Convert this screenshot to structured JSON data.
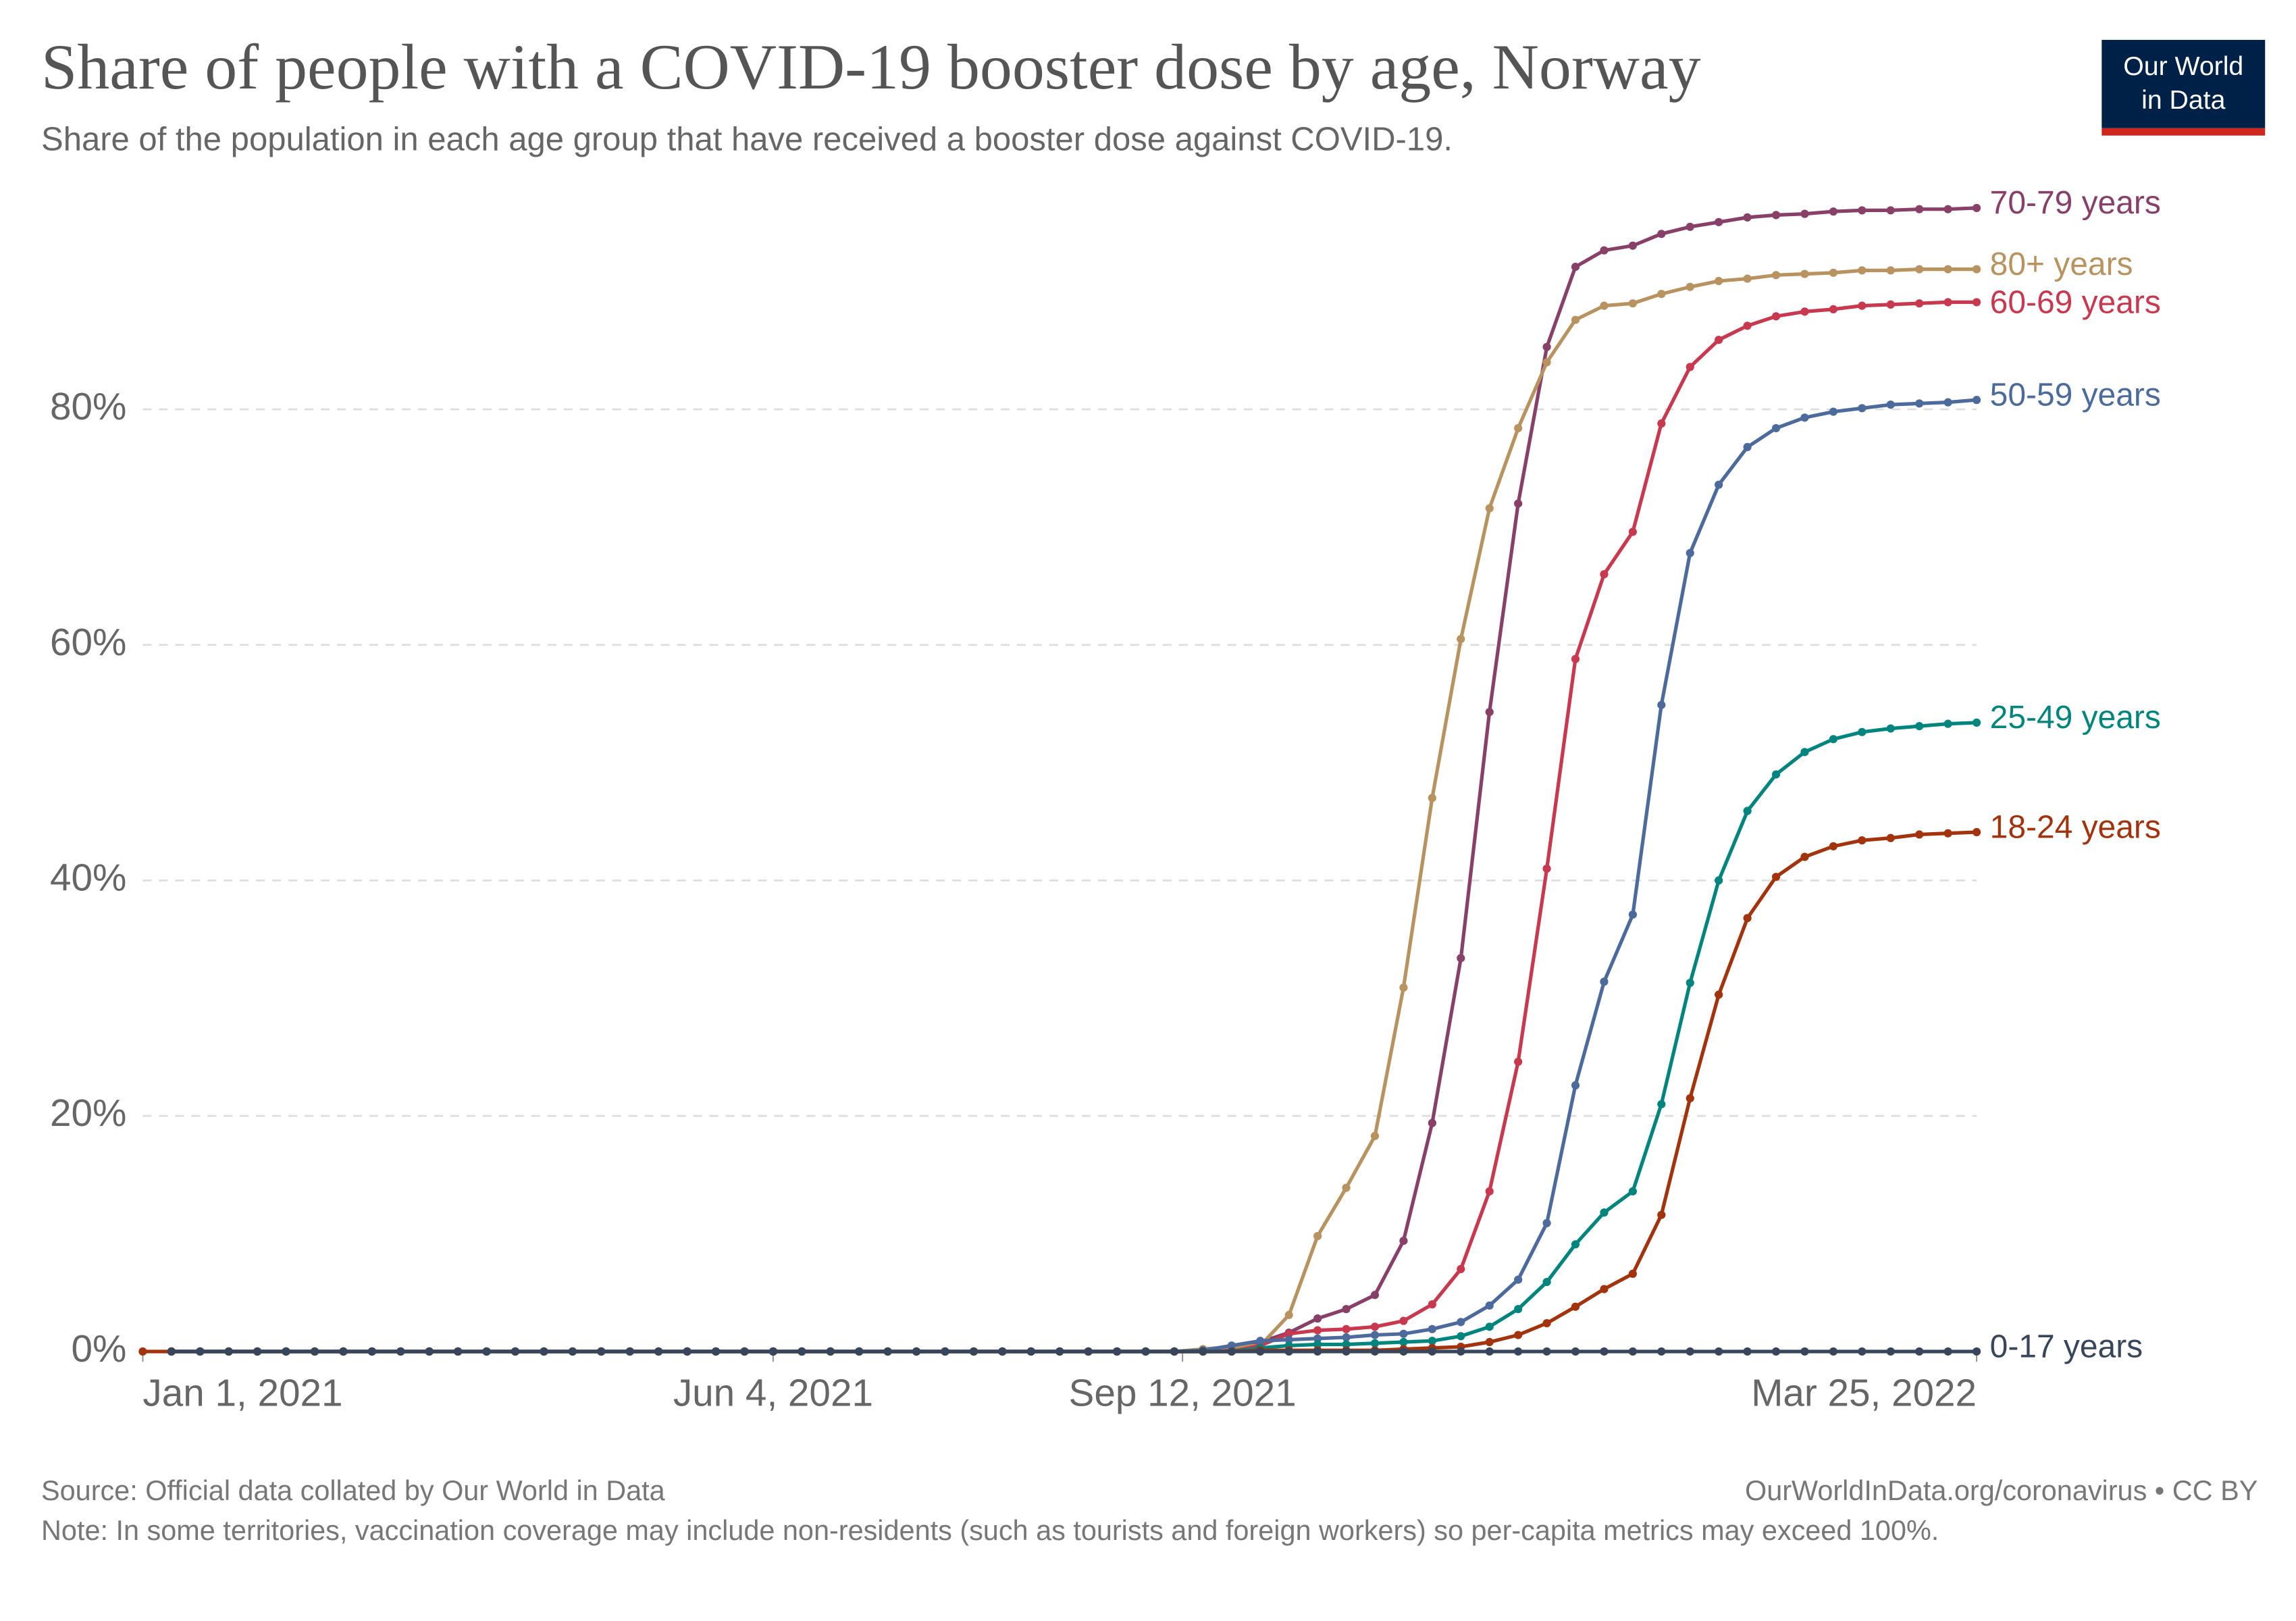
{
  "chart_data": {
    "type": "line",
    "title": "Share of people with a COVID-19 booster dose by age, Norway",
    "subtitle": "Share of the population in each age group that have received a booster dose against COVID-19.",
    "logo": [
      "Our World",
      "in Data"
    ],
    "source": "Source: Official data collated by Our World in Data",
    "license": "OurWorldInData.org/coronavirus • CC BY",
    "note": "Note: In some territories, vaccination coverage may include non-residents (such as tourists and foreign workers) so per-capita metrics may exceed 100%.",
    "x": [
      "2021-01-01",
      "2021-01-08",
      "2021-01-15",
      "2021-01-22",
      "2021-01-29",
      "2021-02-05",
      "2021-02-12",
      "2021-02-19",
      "2021-02-26",
      "2021-03-05",
      "2021-03-12",
      "2021-03-19",
      "2021-03-26",
      "2021-04-02",
      "2021-04-09",
      "2021-04-16",
      "2021-04-23",
      "2021-04-30",
      "2021-05-07",
      "2021-05-14",
      "2021-05-21",
      "2021-05-28",
      "2021-06-04",
      "2021-06-11",
      "2021-06-18",
      "2021-06-25",
      "2021-07-02",
      "2021-07-09",
      "2021-07-16",
      "2021-07-23",
      "2021-07-30",
      "2021-08-06",
      "2021-08-13",
      "2021-08-20",
      "2021-08-27",
      "2021-09-03",
      "2021-09-10",
      "2021-09-17",
      "2021-09-24",
      "2021-10-01",
      "2021-10-08",
      "2021-10-15",
      "2021-10-22",
      "2021-10-29",
      "2021-11-05",
      "2021-11-12",
      "2021-11-19",
      "2021-11-26",
      "2021-12-03",
      "2021-12-10",
      "2021-12-17",
      "2021-12-24",
      "2021-12-31",
      "2022-01-07",
      "2022-01-14",
      "2022-01-21",
      "2022-01-28",
      "2022-02-04",
      "2022-02-11",
      "2022-02-18",
      "2022-02-25",
      "2022-03-04",
      "2022-03-11",
      "2022-03-18",
      "2022-03-25"
    ],
    "xlim": [
      "2021-01-01",
      "2022-03-25"
    ],
    "xticks": [
      {
        "value": "2021-01-01",
        "label": "Jan 1, 2021"
      },
      {
        "value": "2021-06-04",
        "label": "Jun 4, 2021"
      },
      {
        "value": "2021-09-12",
        "label": "Sep 12, 2021"
      },
      {
        "value": "2022-03-25",
        "label": "Mar 25, 2022"
      }
    ],
    "ylim": [
      0,
      100
    ],
    "yticks": [
      {
        "value": 0,
        "label": "0%"
      },
      {
        "value": 20,
        "label": "20%"
      },
      {
        "value": 40,
        "label": "40%"
      },
      {
        "value": 60,
        "label": "60%"
      },
      {
        "value": 80,
        "label": "80%"
      }
    ],
    "grid": true,
    "series": [
      {
        "name": "70-79 years",
        "color": "#883f68",
        "values": [
          null,
          0,
          0,
          0,
          0,
          0,
          0,
          0,
          0,
          0,
          0,
          0,
          0,
          0,
          0,
          0,
          0,
          0,
          0,
          0,
          0,
          0,
          0,
          0,
          0,
          0,
          0,
          0,
          0,
          0,
          0,
          0,
          0,
          0,
          0,
          0,
          0,
          0,
          0.3,
          0.8,
          1.6,
          2.8,
          3.6,
          4.8,
          9.4,
          19.4,
          33.4,
          54.3,
          72,
          85.3,
          92.1,
          93.5,
          93.9,
          94.9,
          95.5,
          95.9,
          96.3,
          96.5,
          96.6,
          96.8,
          96.9,
          96.9,
          97,
          97,
          97.1
        ]
      },
      {
        "name": "80+ years",
        "color": "#b8935f",
        "values": [
          null,
          0,
          0,
          0,
          0,
          0,
          0,
          0,
          0,
          0,
          0,
          0,
          0,
          0,
          0,
          0,
          0,
          0,
          0,
          0,
          0,
          0,
          0,
          0,
          0,
          0,
          0,
          0,
          0,
          0,
          0,
          0,
          0,
          0,
          0,
          0,
          0,
          0.2,
          0.4,
          0.5,
          3.1,
          9.8,
          13.9,
          18.3,
          30.9,
          47,
          60.5,
          71.6,
          78.4,
          84,
          87.6,
          88.8,
          89,
          89.8,
          90.4,
          90.9,
          91.1,
          91.4,
          91.5,
          91.6,
          91.8,
          91.8,
          91.9,
          91.9,
          91.9
        ]
      },
      {
        "name": "60-69 years",
        "color": "#c8384f",
        "values": [
          null,
          0,
          0,
          0,
          0,
          0,
          0,
          0,
          0,
          0,
          0,
          0,
          0,
          0,
          0,
          0,
          0,
          0,
          0,
          0,
          0,
          0,
          0,
          0,
          0,
          0,
          0,
          0,
          0,
          0,
          0,
          0,
          0,
          0,
          0,
          0,
          0,
          0,
          0,
          0.5,
          1.5,
          1.8,
          1.9,
          2.1,
          2.6,
          4,
          7,
          13.6,
          24.6,
          41,
          58.8,
          66,
          69.6,
          78.8,
          83.6,
          85.9,
          87.1,
          87.9,
          88.3,
          88.5,
          88.8,
          88.9,
          89,
          89.1,
          89.1
        ]
      },
      {
        "name": "50-59 years",
        "color": "#4c6a9c",
        "values": [
          null,
          0,
          0,
          0,
          0,
          0,
          0,
          0,
          0,
          0,
          0,
          0,
          0,
          0,
          0,
          0,
          0,
          0,
          0,
          0,
          0,
          0,
          0,
          0,
          0,
          0,
          0,
          0,
          0,
          0,
          0,
          0,
          0,
          0,
          0,
          0,
          0,
          0.1,
          0.5,
          0.9,
          1,
          1.1,
          1.2,
          1.4,
          1.5,
          1.9,
          2.5,
          3.9,
          6.1,
          10.9,
          22.6,
          31.4,
          37.1,
          54.9,
          67.8,
          73.6,
          76.8,
          78.4,
          79.3,
          79.8,
          80.1,
          80.4,
          80.5,
          80.6,
          80.8
        ]
      },
      {
        "name": "25-49 years",
        "color": "#00847e",
        "values": [
          null,
          0,
          0,
          0,
          0,
          0,
          0,
          0,
          0,
          0,
          0,
          0,
          0,
          0,
          0,
          0,
          0,
          0,
          0,
          0,
          0,
          0,
          0,
          0,
          0,
          0,
          0,
          0,
          0,
          0,
          0,
          0,
          0,
          0,
          0,
          0,
          0,
          0,
          0,
          0.3,
          0.5,
          0.6,
          0.6,
          0.7,
          0.8,
          0.9,
          1.3,
          2.1,
          3.6,
          5.9,
          9.1,
          11.8,
          13.6,
          21,
          31.3,
          40,
          45.9,
          49,
          50.9,
          52,
          52.6,
          52.9,
          53.1,
          53.3,
          53.4
        ]
      },
      {
        "name": "18-24 years",
        "color": "#a2330d",
        "values": [
          0,
          0,
          0,
          0,
          0,
          0,
          0,
          0,
          0,
          0,
          0,
          0,
          0,
          0,
          0,
          0,
          0,
          0,
          0,
          0,
          0,
          0,
          0,
          0,
          0,
          0,
          0,
          0,
          0,
          0,
          0,
          0,
          0,
          0,
          0,
          0,
          0,
          0,
          0,
          0.1,
          0.1,
          0.1,
          0.1,
          0.1,
          0.2,
          0.3,
          0.4,
          0.8,
          1.4,
          2.4,
          3.8,
          5.3,
          6.6,
          11.6,
          21.5,
          30.3,
          36.8,
          40.3,
          42,
          42.9,
          43.4,
          43.6,
          43.9,
          44,
          44.1
        ]
      },
      {
        "name": "0-17 years",
        "color": "#38465b",
        "values": [
          null,
          0,
          0,
          0,
          0,
          0,
          0,
          0,
          0,
          0,
          0,
          0,
          0,
          0,
          0,
          0,
          0,
          0,
          0,
          0,
          0,
          0,
          0,
          0,
          0,
          0,
          0,
          0,
          0,
          0,
          0,
          0,
          0,
          0,
          0,
          0,
          0,
          0,
          0,
          0,
          0,
          0,
          0,
          0,
          0,
          0,
          0,
          0,
          0,
          0,
          0,
          0,
          0,
          0,
          0,
          0,
          0,
          0,
          0,
          0,
          0,
          0,
          0,
          0,
          0
        ]
      }
    ]
  }
}
